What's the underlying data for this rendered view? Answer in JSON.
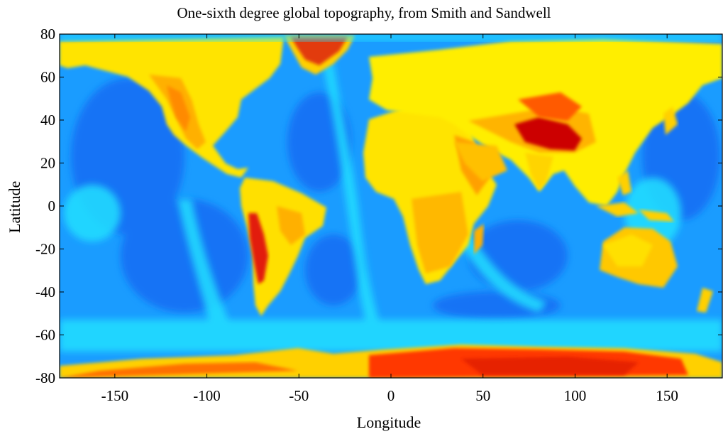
{
  "chart_data": {
    "type": "heatmap",
    "title": "One-sixth degree global topography, from Smith and Sandwell",
    "xlabel": "Longitude",
    "ylabel": "Latitude",
    "xlim": [
      -180,
      180
    ],
    "ylim": [
      -80,
      80
    ],
    "x_ticks": [
      -150,
      -100,
      -50,
      0,
      50,
      100,
      150
    ],
    "y_ticks": [
      80,
      60,
      40,
      20,
      0,
      -20,
      -40,
      -60,
      -80
    ],
    "colormap": "jet",
    "grid": false,
    "colors": {
      "deep_ocean": "#0a3cf0",
      "ocean": "#1e90ff",
      "shelf": "#00e5ff",
      "lowland": "#ffff00",
      "upland": "#ffa500",
      "highland": "#e00000"
    }
  }
}
